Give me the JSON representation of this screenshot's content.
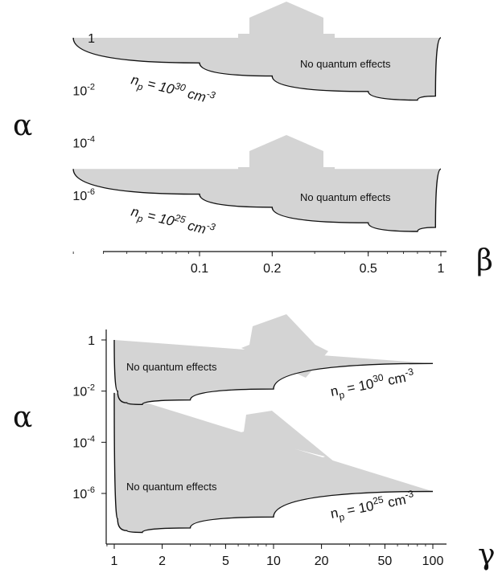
{
  "chart_data": [
    {
      "type": "area",
      "xlabel": "β",
      "ylabel": "α",
      "x_scale": "log",
      "y_scale": "log",
      "xlim": [
        0.03,
        1.0
      ],
      "x_ticks": [
        {
          "value": 0.1,
          "label": "0.1"
        },
        {
          "value": 0.2,
          "label": "0.2"
        },
        {
          "value": 0.5,
          "label": "0.5"
        },
        {
          "value": 1,
          "label": "1"
        }
      ],
      "y_ticks": [
        {
          "value": 1,
          "base": "1",
          "exp": ""
        },
        {
          "value": 0.01,
          "base": "10",
          "exp": "-2"
        },
        {
          "value": 0.0001,
          "base": "10",
          "exp": "-4"
        },
        {
          "value": 1e-06,
          "base": "10",
          "exp": "-6"
        }
      ],
      "series": [
        {
          "label_base": "n",
          "label_sub": "p",
          "label_mid": " = 10",
          "label_exp": "30",
          "label_unit": " cm",
          "label_unit_exp": "-3",
          "region_label": "No quantum effects",
          "fill": "#d4d4d4",
          "x": [
            0.03,
            0.1,
            0.2,
            0.5,
            0.8,
            0.95,
            1.0
          ],
          "y": [
            1.0,
            0.11,
            0.035,
            0.009,
            0.0042,
            0.006,
            1.0
          ]
        },
        {
          "label_base": "n",
          "label_sub": "p",
          "label_mid": " = 10",
          "label_exp": "25",
          "label_unit": " cm",
          "label_unit_exp": "-3",
          "region_label": "No quantum effects",
          "fill": "#d4d4d4",
          "x": [
            0.03,
            0.1,
            0.2,
            0.5,
            0.8,
            0.95,
            1.0
          ],
          "y": [
            1e-05,
            1.1e-06,
            3.5e-07,
            9e-08,
            4.2e-08,
            6e-08,
            1e-05
          ]
        }
      ]
    },
    {
      "type": "area",
      "xlabel": "γ",
      "ylabel": "α",
      "x_scale": "log",
      "y_scale": "log",
      "xlim": [
        0.9,
        110
      ],
      "x_ticks": [
        {
          "value": 1,
          "label": "1"
        },
        {
          "value": 2,
          "label": "2"
        },
        {
          "value": 5,
          "label": "5"
        },
        {
          "value": 10,
          "label": "10"
        },
        {
          "value": 20,
          "label": "20"
        },
        {
          "value": 50,
          "label": "50"
        },
        {
          "value": 100,
          "label": "100"
        }
      ],
      "y_ticks": [
        {
          "value": 1,
          "base": "1",
          "exp": ""
        },
        {
          "value": 0.01,
          "base": "10",
          "exp": "-2"
        },
        {
          "value": 0.0001,
          "base": "10",
          "exp": "-4"
        },
        {
          "value": 1e-06,
          "base": "10",
          "exp": "-6"
        }
      ],
      "series": [
        {
          "label_base": "n",
          "label_sub": "p",
          "label_mid": " = 10",
          "label_exp": "30",
          "label_unit": " cm",
          "label_unit_exp": "-3",
          "region_label": "No quantum effects",
          "fill": "#d4d4d4",
          "x": [
            1.0,
            1.05,
            1.2,
            1.5,
            3,
            10,
            100
          ],
          "y": [
            1.0,
            0.01,
            0.0035,
            0.003,
            0.0045,
            0.012,
            0.12
          ]
        },
        {
          "label_base": "n",
          "label_sub": "p",
          "label_mid": " = 10",
          "label_exp": "25",
          "label_unit": " cm",
          "label_unit_exp": "-3",
          "region_label": "No quantum effects",
          "fill": "#d4d4d4",
          "x": [
            1.0,
            1.05,
            1.2,
            1.5,
            3,
            10,
            100
          ],
          "y": [
            0.0085,
            1e-07,
            3.5e-08,
            3e-08,
            4.5e-08,
            1.2e-07,
            1.2e-06
          ]
        }
      ]
    }
  ]
}
